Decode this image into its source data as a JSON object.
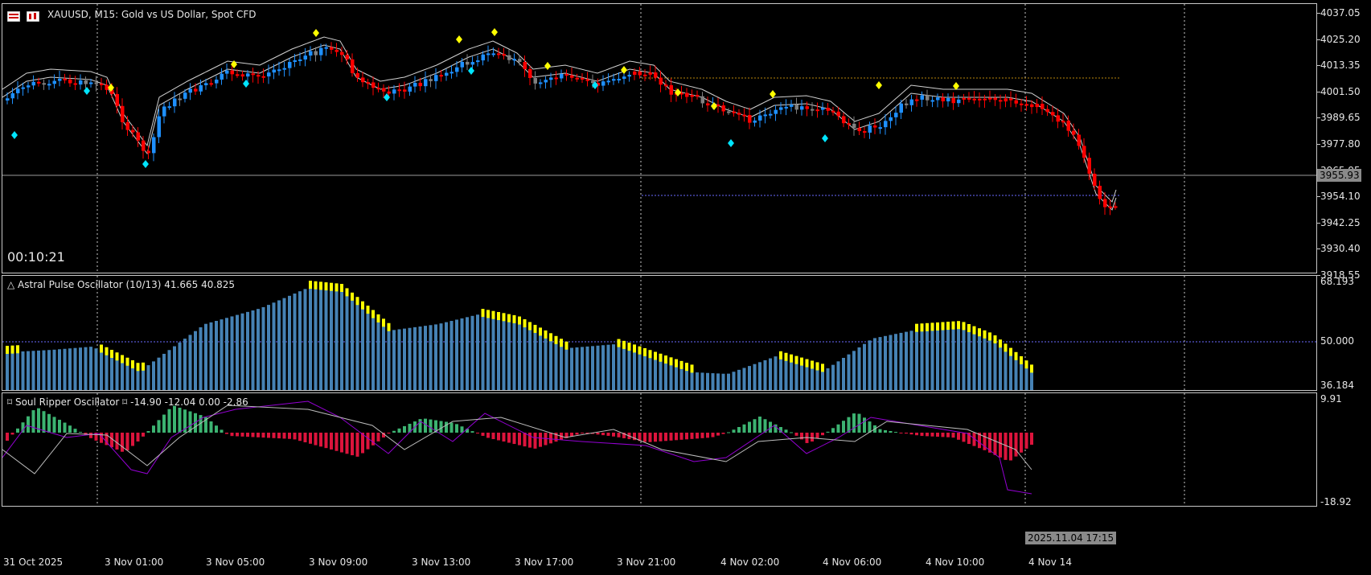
{
  "main_chart": {
    "symbol": "XAUUSD, M15:  Gold vs US Dollar, Spot CFD",
    "timer": "00:10:21",
    "current_price": "3955.93",
    "price_ticks": [
      "4037.05",
      "4025.20",
      "4013.35",
      "4001.50",
      "3989.65",
      "3977.80",
      "3965.95",
      "3954.10",
      "3942.25",
      "3930.40",
      "3918.55"
    ]
  },
  "indicator1": {
    "title": "△ Astral Pulse Oscillator (10/13) 41.665 40.825",
    "ticks": [
      "68.193",
      "50.000",
      "36.184"
    ]
  },
  "indicator2": {
    "title": "⌑ Soul Ripper Oscillator ⌑ -14.90 -12.04 0.00 -2.86",
    "ticks": [
      "9.91",
      "-18.92"
    ]
  },
  "time_axis": {
    "ticks": [
      "31 Oct 2025",
      "3 Nov 01:00",
      "3 Nov 05:00",
      "3 Nov 09:00",
      "3 Nov 13:00",
      "3 Nov 17:00",
      "3 Nov 21:00",
      "4 Nov 02:00",
      "4 Nov 06:00",
      "4 Nov 10:00",
      "4 Nov 14"
    ],
    "cursor_label": "2025.11.04 17:15"
  },
  "colors": {
    "bull": "#1e90ff",
    "bear": "#ff0000",
    "neutral": "#808080",
    "diamond_top": "#ffff00",
    "diamond_bottom": "#00e5ff",
    "hist_bar": "#4682b4",
    "hist_cap": "#ffff00",
    "osc_pos": "#3cb371",
    "osc_neg": "#dc143c"
  }
}
